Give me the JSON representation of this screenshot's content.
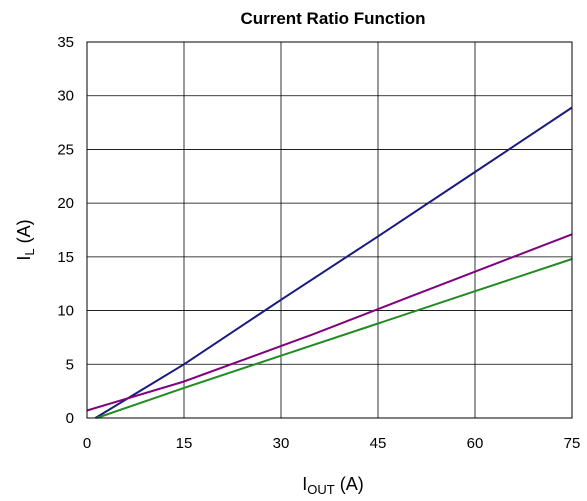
{
  "chart_data": {
    "type": "line",
    "title": "Current Ratio Function",
    "xlabel": {
      "main": "I",
      "sub": "OUT",
      "unit": " (A)"
    },
    "ylabel": {
      "main": "I",
      "sub": "L",
      "unit": " (A)"
    },
    "xlim": [
      0,
      75
    ],
    "ylim": [
      0,
      35
    ],
    "xticks": [
      0,
      15,
      30,
      45,
      60,
      75
    ],
    "yticks": [
      0,
      5,
      10,
      15,
      20,
      25,
      30,
      35
    ],
    "grid": true,
    "series": [
      {
        "color": "#1a1a80",
        "points": [
          [
            1.3,
            0
          ],
          [
            15,
            5
          ],
          [
            30,
            11
          ],
          [
            45,
            16.9
          ],
          [
            60,
            22.9
          ],
          [
            75,
            28.9
          ]
        ]
      },
      {
        "color": "#800080",
        "points": [
          [
            0,
            0.7
          ],
          [
            15,
            3.4
          ],
          [
            35,
            7.8
          ],
          [
            50,
            11.3
          ],
          [
            75,
            17.1
          ]
        ]
      },
      {
        "color": "#228b22",
        "points": [
          [
            1.5,
            0
          ],
          [
            15,
            2.8
          ],
          [
            30,
            5.8
          ],
          [
            45,
            8.8
          ],
          [
            60,
            11.8
          ],
          [
            75,
            14.8
          ]
        ]
      }
    ]
  }
}
